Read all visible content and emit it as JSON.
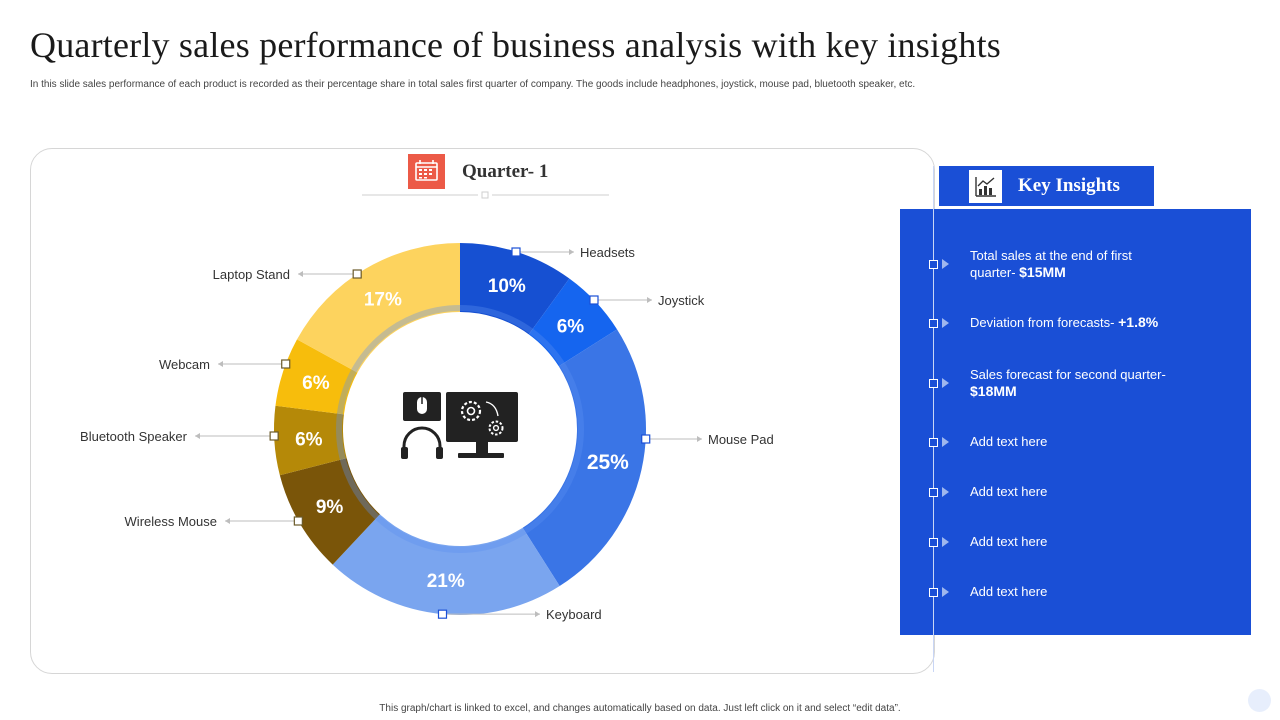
{
  "header": {
    "title": "Quarterly sales performance of business analysis with key insights",
    "subtitle": "In this slide sales performance of each product is recorded as their percentage share in total sales first quarter of company. The goods include headphones, joystick, mouse pad, bluetooth speaker, etc."
  },
  "chart_data": {
    "type": "pie",
    "variant": "donut",
    "title": "Quarter- 1",
    "categories": [
      "Headsets",
      "Joystick",
      "Mouse Pad",
      "Keyboard",
      "Wireless Mouse",
      "Bluetooth Speaker",
      "Webcam",
      "Laptop Stand"
    ],
    "values": [
      10,
      6,
      25,
      21,
      9,
      6,
      6,
      17
    ],
    "value_labels": [
      "10%",
      "6%",
      "25%",
      "21%",
      "9%",
      "6%",
      "6%",
      "17%"
    ],
    "colors": [
      "#1650d2",
      "#1565ef",
      "#3a75e6",
      "#7aa5ef",
      "#7a5509",
      "#b58908",
      "#f7bd0c",
      "#fdd35e"
    ],
    "legend": "callout labels around ring"
  },
  "insights": {
    "title": "Key Insights",
    "items": [
      {
        "text": "Total sales at the end of first quarter-",
        "value": "$15MM"
      },
      {
        "text": "Deviation from forecasts-",
        "value": "+1.8%"
      },
      {
        "text": "Sales forecast for second quarter-",
        "value": "$18MM"
      },
      {
        "text": "Add text here",
        "value": ""
      },
      {
        "text": "Add text here",
        "value": ""
      },
      {
        "text": "Add text here",
        "value": ""
      },
      {
        "text": "Add text here",
        "value": ""
      }
    ]
  },
  "icons": {
    "quarter": "calendar-icon",
    "insights": "chart-line-icon",
    "center": "computer-devices-icon"
  },
  "footer": {
    "note": "This graph/chart is linked to excel, and changes automatically based on data. Just left click on it and select “edit data”."
  }
}
